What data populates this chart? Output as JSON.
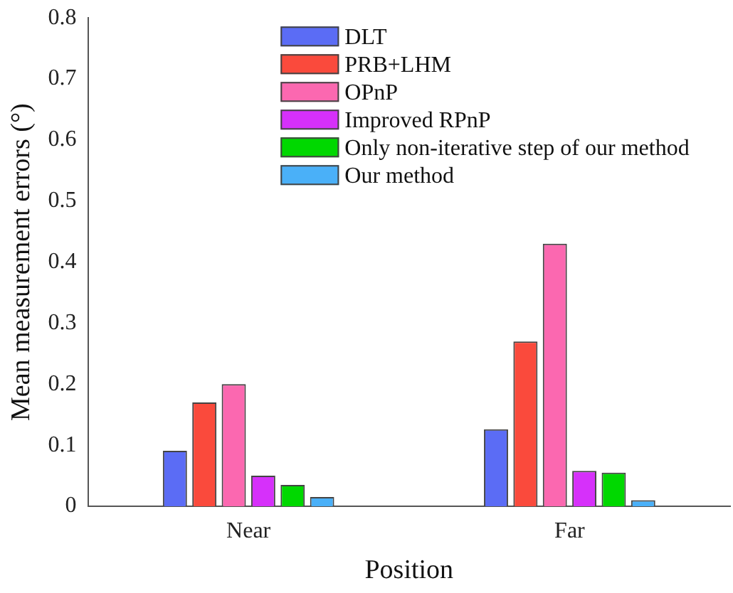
{
  "chart_data": {
    "type": "bar",
    "xlabel": "Position",
    "ylabel": "Mean measurement errors (°)",
    "categories": [
      "Near",
      "Far"
    ],
    "series": [
      {
        "name": "DLT",
        "color": "#5b6cf5",
        "values": [
          0.091,
          0.126
        ]
      },
      {
        "name": "PRB+LHM",
        "color": "#fa4a3c",
        "values": [
          0.17,
          0.27
        ]
      },
      {
        "name": "OPnP",
        "color": "#fb68b0",
        "values": [
          0.2,
          0.43
        ]
      },
      {
        "name": "Improved RPnP",
        "color": "#d630fa",
        "values": [
          0.05,
          0.058
        ]
      },
      {
        "name": "Only non-iterative step of our method",
        "color": "#00d800",
        "values": [
          0.035,
          0.055
        ]
      },
      {
        "name": "Our method",
        "color": "#4ab0f8",
        "values": [
          0.015,
          0.01
        ]
      }
    ],
    "ylim": [
      0,
      0.8
    ],
    "yticks": [
      0,
      0.1,
      0.2,
      0.3,
      0.4,
      0.5,
      0.6,
      0.7,
      0.8
    ],
    "grid": false,
    "legend": "top"
  }
}
